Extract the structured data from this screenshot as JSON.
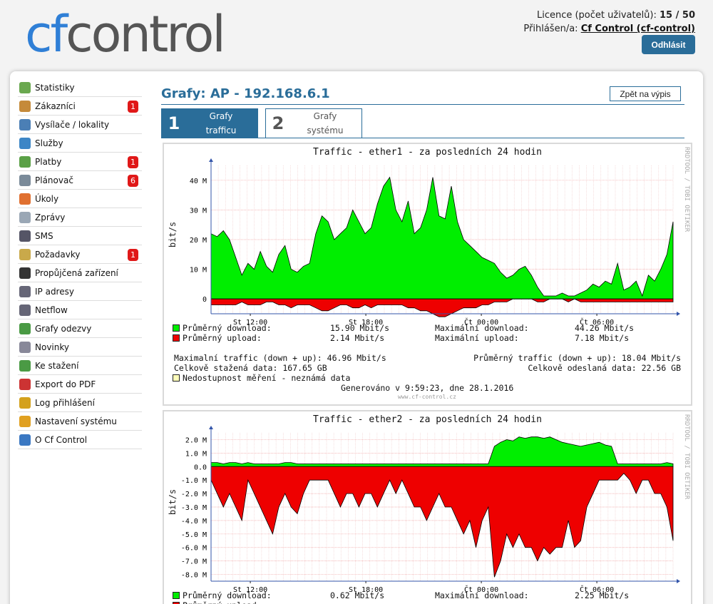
{
  "header": {
    "logo_cf": "cf",
    "logo_control": "control",
    "licence_label": "Licence (počet uživatelů):",
    "licence_value": "15 / 50",
    "logged_label": "Přihlášen/a:",
    "logged_user": "Cf Control (cf-control)",
    "logout": "Odhlásit"
  },
  "sidebar": {
    "items": [
      {
        "label": "Statistiky",
        "icon": "bar-chart-icon",
        "color": "#6aa84f"
      },
      {
        "label": "Zákazníci",
        "icon": "users-icon",
        "color": "#c58a3a",
        "badge": "1"
      },
      {
        "label": "Vysílače / lokality",
        "icon": "antenna-icon",
        "color": "#4b7fb5"
      },
      {
        "label": "Služby",
        "icon": "cloud-icon",
        "color": "#3d86c6"
      },
      {
        "label": "Platby",
        "icon": "money-icon",
        "color": "#5aa046",
        "badge": "1"
      },
      {
        "label": "Plánovač",
        "icon": "calendar-icon",
        "color": "#7a8a99",
        "badge": "6"
      },
      {
        "label": "Úkoly",
        "icon": "lifebuoy-icon",
        "color": "#e07030"
      },
      {
        "label": "Zprávy",
        "icon": "envelope-icon",
        "color": "#9aa7b5"
      },
      {
        "label": "SMS",
        "icon": "phone-icon",
        "color": "#556"
      },
      {
        "label": "Požadavky",
        "icon": "notepad-icon",
        "color": "#c9a94a",
        "badge": "1"
      },
      {
        "label": "Propůjčená zařízení",
        "icon": "device-icon",
        "color": "#333"
      },
      {
        "label": "IP adresy",
        "icon": "ip-icon",
        "color": "#667"
      },
      {
        "label": "Netflow",
        "icon": "netflow-icon",
        "color": "#667"
      },
      {
        "label": "Grafy odezvy",
        "icon": "response-chart-icon",
        "color": "#4a9a44"
      },
      {
        "label": "Novinky",
        "icon": "news-icon",
        "color": "#889"
      },
      {
        "label": "Ke stažení",
        "icon": "download-icon",
        "color": "#4a9a44"
      },
      {
        "label": "Export do PDF",
        "icon": "pdf-icon",
        "color": "#cc3333"
      },
      {
        "label": "Log přihlášení",
        "icon": "key-icon",
        "color": "#d4a11c"
      },
      {
        "label": "Nastavení systému",
        "icon": "gear-icon",
        "color": "#e0a020"
      },
      {
        "label": "O Cf Control",
        "icon": "help-icon",
        "color": "#3b78c2"
      }
    ]
  },
  "main": {
    "title": "Grafy: AP - 192.168.6.1",
    "back_button": "Zpět na výpis",
    "tabs": [
      {
        "num": "1",
        "label1": "Grafy",
        "label2": "trafficu",
        "active": true
      },
      {
        "num": "2",
        "label1": "Grafy",
        "label2": "systému",
        "active": false
      }
    ]
  },
  "colors": {
    "accent": "#2a6d99",
    "download": "#00ee00",
    "upload": "#ee0000",
    "badge": "#e01818"
  },
  "chart_data": [
    {
      "type": "area",
      "title": "Traffic - ether1 - za posledních 24 hodin",
      "ylabel": "bit/s",
      "y_ticks": [
        "40 M",
        "30 M",
        "20 M",
        "10 M",
        "0"
      ],
      "ylim": [
        -5,
        45
      ],
      "x_ticks": [
        "St 12:00",
        "St 18:00",
        "Čt 00:00",
        "Čt 06:00"
      ],
      "watermark": "RRDTOOL / TOBI OETIKER",
      "series": [
        {
          "name": "Průměrný download",
          "unit": "Mbit/s",
          "values": [
            22,
            21,
            23,
            20,
            14,
            8,
            12,
            10,
            16,
            11,
            9,
            15,
            18,
            10,
            9,
            11,
            12,
            22,
            28,
            26,
            20,
            22,
            24,
            30,
            26,
            22,
            24,
            32,
            38,
            41,
            30,
            26,
            33,
            22,
            24,
            30,
            41,
            28,
            27,
            38,
            26,
            20,
            18,
            16,
            14,
            13,
            12,
            9,
            7,
            8,
            10,
            11,
            8,
            4,
            1,
            1,
            1,
            2,
            1,
            1,
            2,
            3,
            5,
            4,
            6,
            5,
            12,
            3,
            4,
            6,
            1,
            8,
            6,
            10,
            15,
            26
          ]
        },
        {
          "name": "Průměrný upload",
          "unit": "Mbit/s",
          "values": [
            -2,
            -2,
            -2,
            -2,
            -2,
            -1,
            -2,
            -2,
            -2,
            -1,
            -1,
            -2,
            -2,
            -3,
            -2,
            -2,
            -2,
            -3,
            -4,
            -4,
            -3,
            -2,
            -2,
            -3,
            -3,
            -2,
            -3,
            -2,
            -2,
            -2,
            -2,
            -2,
            -3,
            -3,
            -4,
            -4,
            -5,
            -6,
            -6,
            -5,
            -4,
            -3,
            -3,
            -3,
            -2,
            -2,
            -1,
            -1,
            -1,
            0,
            0,
            0,
            0,
            -1,
            -1,
            0,
            0,
            0,
            -1,
            0,
            -1,
            -1,
            -1,
            -1,
            -1,
            -1,
            -1,
            -1,
            -1,
            -1,
            -1,
            -1,
            -1,
            -1,
            -1,
            -1
          ]
        }
      ],
      "stats": {
        "avg_download": "15.90 Mbit/s",
        "max_download": "44.26 Mbit/s",
        "avg_upload": "2.14 Mbit/s",
        "max_upload": "7.18 Mbit/s",
        "max_traffic": "46.96 Mbit/s",
        "avg_traffic": "18.04 Mbit/s",
        "total_down": "167.65 GB",
        "total_up": "22.56 GB"
      }
    },
    {
      "type": "area",
      "title": "Traffic - ether2 - za posledních 24 hodin",
      "ylabel": "bit/s",
      "y_ticks": [
        "2.0 M",
        "1.0 M",
        "0.0",
        "-1.0 M",
        "-2.0 M",
        "-3.0 M",
        "-4.0 M",
        "-5.0 M",
        "-6.0 M",
        "-7.0 M",
        "-8.0 M"
      ],
      "ylim": [
        -8.5,
        2.5
      ],
      "x_ticks": [
        "St 12:00",
        "St 18:00",
        "Čt 00:00",
        "Čt 06:00"
      ],
      "watermark": "RRDTOOL / TOBI OETIKER",
      "series": [
        {
          "name": "Průměrný download",
          "unit": "Mbit/s",
          "values": [
            0.3,
            0.3,
            0.2,
            0.3,
            0.3,
            0.2,
            0.3,
            0.2,
            0.2,
            0.2,
            0.2,
            0.2,
            0.3,
            0.3,
            0.2,
            0.2,
            0.2,
            0.2,
            0.2,
            0.2,
            0.2,
            0.2,
            0.2,
            0.2,
            0.2,
            0.2,
            0.2,
            0.2,
            0.2,
            0.2,
            0.2,
            0.2,
            0.2,
            0.2,
            0.2,
            0.2,
            0.2,
            0.2,
            0.2,
            0.2,
            0.2,
            0.2,
            0.2,
            0.2,
            0.2,
            0.2,
            1.5,
            1.8,
            2.0,
            1.9,
            2.2,
            2.1,
            2.2,
            2.2,
            2.1,
            2.2,
            2.0,
            1.8,
            1.7,
            1.6,
            1.5,
            1.6,
            1.7,
            1.8,
            1.6,
            1.5,
            0.2,
            0.2,
            0.2,
            0.2,
            0.2,
            0.2,
            0.2,
            0.2,
            0.3,
            0.2
          ]
        },
        {
          "name": "Průměrný upload",
          "unit": "Mbit/s",
          "values": [
            -1,
            -2,
            -3,
            -2,
            -3,
            -4,
            -1,
            -2,
            -3,
            -4,
            -5,
            -3,
            -2,
            -3,
            -3.5,
            -2,
            -1,
            -1,
            -1,
            -1,
            -2,
            -3,
            -2,
            -2,
            -3,
            -2,
            -2,
            -3,
            -2,
            -1,
            -2,
            -1,
            -2,
            -3,
            -3,
            -4,
            -3,
            -2,
            -3,
            -3,
            -4,
            -5,
            -4,
            -6,
            -4,
            -3,
            -8.2,
            -7,
            -5,
            -6,
            -5,
            -6,
            -6,
            -7,
            -6,
            -6.5,
            -6,
            -6,
            -4,
            -6,
            -5.5,
            -3,
            -2,
            -1,
            -1,
            -1,
            -1,
            -0.5,
            -1,
            -2,
            -1,
            -1,
            -2,
            -2,
            -3,
            -5.5
          ]
        }
      ],
      "stats": {
        "avg_download": "0.62 Mbit/s",
        "max_download": "2.25 Mbit/s"
      }
    }
  ],
  "graph1_text": {
    "lbl_avg_down": "Průměrný download:",
    "lbl_avg_up": "Průměrný upload:",
    "lbl_max_down": "Maximální download:",
    "lbl_max_up": "Maximální upload:",
    "lbl_max_traffic": "Maximalní traffic (down + up):",
    "lbl_avg_traffic": "Průměrný traffic (down + up):",
    "lbl_total_down": "Celkově stažená data:",
    "lbl_total_up": "Celkově odeslaná data:",
    "unavailable": "Nedostupnost měření - neznámá data",
    "generated": "Generováno v 9:59:23, dne 28.1.2016",
    "site": "www.cf-control.cz"
  }
}
